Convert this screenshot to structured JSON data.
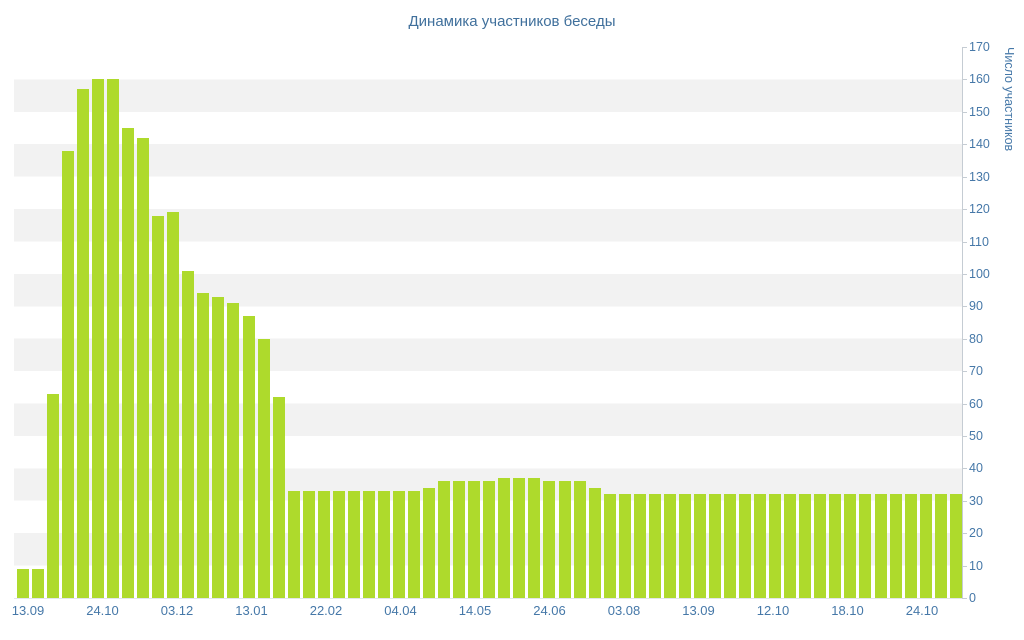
{
  "title": "Динамика участников беседы",
  "colors": {
    "bar": "#aeda2c",
    "tick_label": "#4678a8",
    "title": "#40709c",
    "stripe": "#f2f2f2",
    "axis_line": "#c5ccd3"
  },
  "chart_data": {
    "type": "bar",
    "title": "Динамика участников беседы",
    "xlabel": "",
    "ylabel": "Число участников",
    "ylim": [
      0,
      170
    ],
    "y_tick_step": 10,
    "y_axis_position": "right",
    "grid": "striped-horizontal-bands-per-10-units",
    "legend": "none",
    "x_tick_labels": [
      "13.09",
      "24.10",
      "03.12",
      "13.01",
      "22.02",
      "04.04",
      "14.05",
      "24.06",
      "03.08",
      "13.09",
      "12.10",
      "18.10",
      "24.10"
    ],
    "values": [
      9,
      9,
      63,
      138,
      157,
      160,
      160,
      145,
      142,
      118,
      119,
      101,
      94,
      93,
      91,
      87,
      80,
      62,
      33,
      33,
      33,
      33,
      33,
      33,
      33,
      33,
      33,
      34,
      36,
      36,
      36,
      36,
      37,
      37,
      37,
      36,
      36,
      36,
      34,
      32,
      32,
      32,
      32,
      32,
      32,
      32,
      32,
      32,
      32,
      32,
      32,
      32,
      32,
      32,
      32,
      32,
      32,
      32,
      32,
      32,
      32,
      32,
      32
    ]
  }
}
